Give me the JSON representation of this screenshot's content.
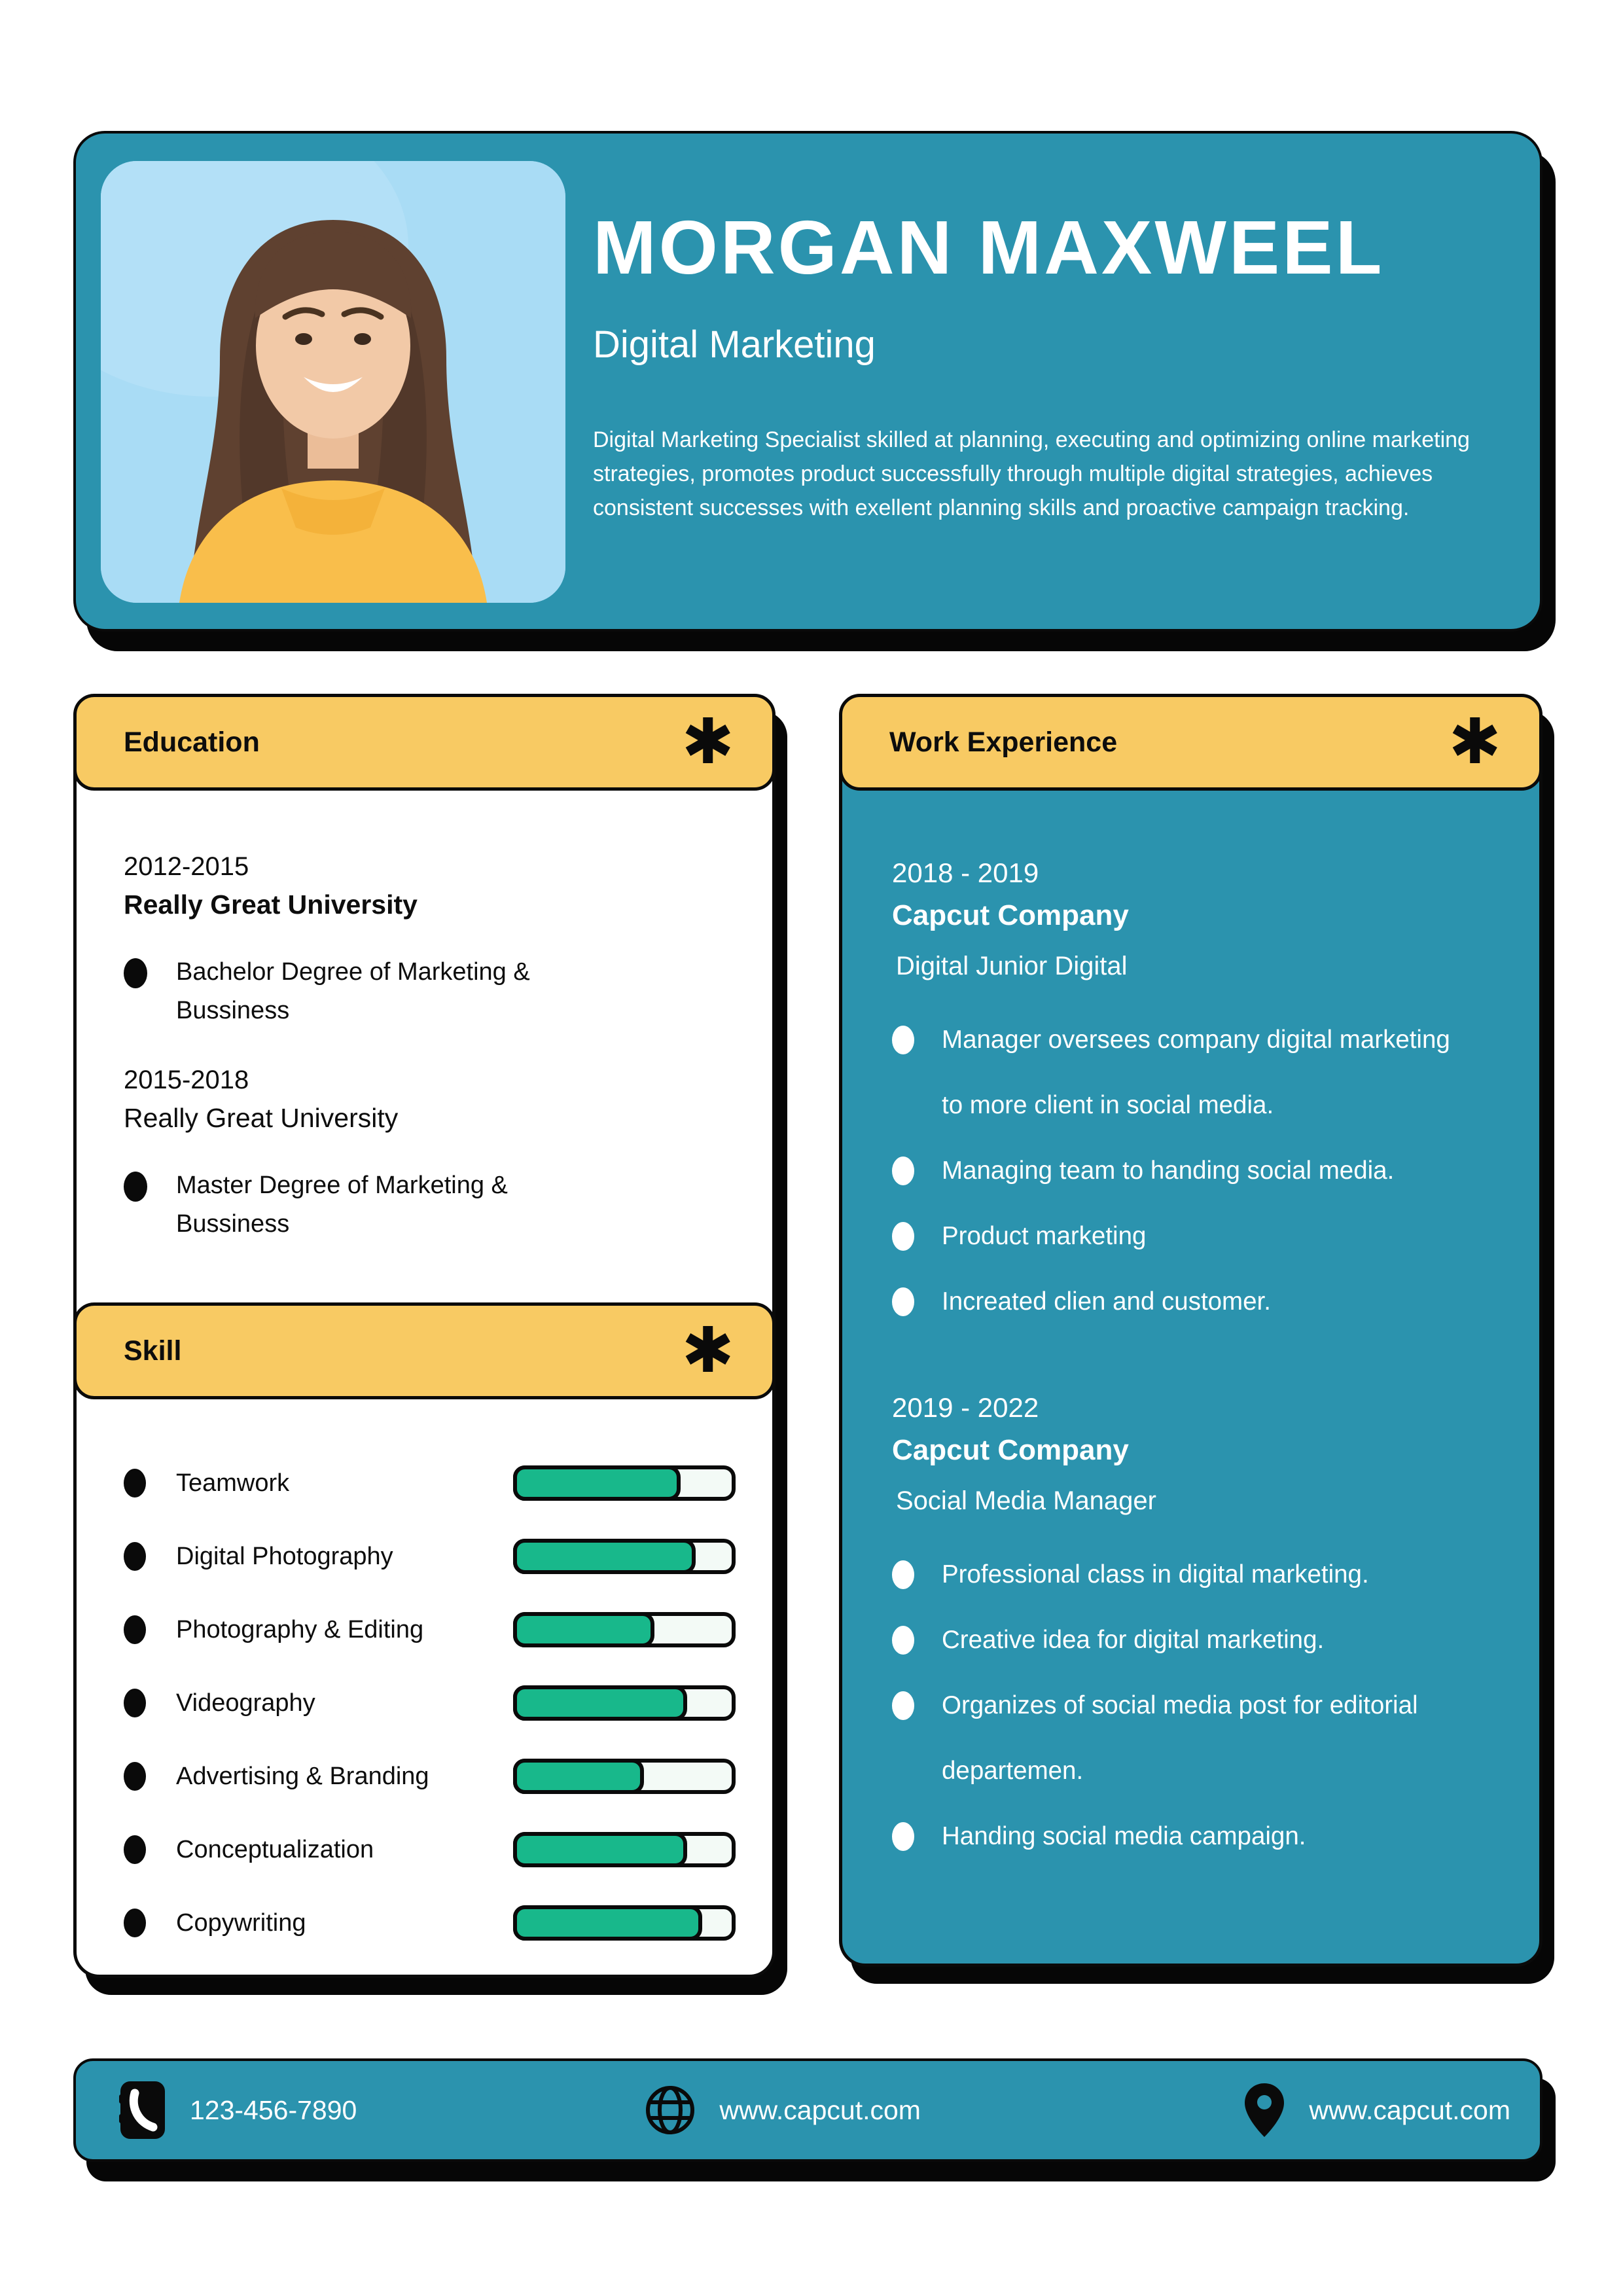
{
  "colors": {
    "teal": "#2B93AE",
    "yellow": "#F8CA63",
    "green": "#18B88B",
    "track": "#F3FAF6",
    "ink": "#0A0A0A",
    "photo_bg": "#A9DCF5"
  },
  "header": {
    "name": "MORGAN MAXWEEL",
    "title": "Digital Marketing",
    "summary": "Digital Marketing Specialist skilled at planning, executing and optimizing online marketing strategies, promotes product successfully through multiple digital strategies, achieves consistent successes with exellent planning skills and proactive campaign tracking."
  },
  "education": {
    "heading": "Education",
    "asterisk": "✱",
    "entries": [
      {
        "period": "2012-2015",
        "school": "Really Great University",
        "degree": "Bachelor Degree of Marketing & Bussiness"
      },
      {
        "period": "2015-2018",
        "school": "Really Great University",
        "degree": "Master Degree of Marketing & Bussiness"
      }
    ]
  },
  "skills": {
    "heading": "Skill",
    "asterisk": "✱",
    "items": [
      {
        "label": "Teamwork",
        "percent": 78
      },
      {
        "label": "Digital Photography",
        "percent": 85
      },
      {
        "label": "Photography & Editing",
        "percent": 66
      },
      {
        "label": "Videography",
        "percent": 81
      },
      {
        "label": "Advertising & Branding",
        "percent": 61
      },
      {
        "label": "Conceptualization",
        "percent": 81
      },
      {
        "label": "Copywriting",
        "percent": 88
      }
    ]
  },
  "experience": {
    "heading": "Work Experience",
    "asterisk": "✱",
    "jobs": [
      {
        "period": "2018 - 2019",
        "company": "Capcut Company",
        "role": "Digital Junior Digital",
        "bullets": [
          "Manager oversees company digital marketing to more client in social media.",
          "Managing team to handing social media.",
          "Product marketing",
          "Increated clien and customer."
        ]
      },
      {
        "period": "2019 - 2022",
        "company": "Capcut Company",
        "role": "Social Media Manager",
        "bullets": [
          "Professional class in digital marketing.",
          "Creative idea for digital marketing.",
          "Organizes of social media post for editorial departemen.",
          "Handing social media campaign."
        ]
      }
    ]
  },
  "footer": {
    "phone": "123-456-7890",
    "website": "www.capcut.com",
    "address": "www.capcut.com"
  }
}
